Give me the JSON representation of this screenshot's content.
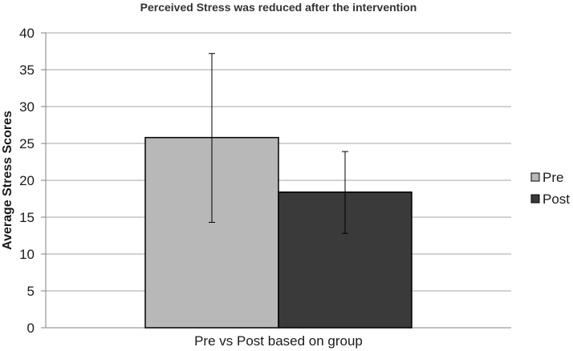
{
  "chart_data": {
    "type": "bar",
    "title": "Perceived Stress was reduced after the intervention",
    "xlabel": "Pre vs Post based on group",
    "ylabel": "Average Stress Scores",
    "ylim": [
      0,
      40
    ],
    "yticks": [
      0,
      5,
      10,
      15,
      20,
      25,
      30,
      35,
      40
    ],
    "grid": true,
    "legend_position": "right",
    "series": [
      {
        "name": "Pre",
        "value": 25.8,
        "error_low": 14.3,
        "error_high": 37.2,
        "color": "#b8b8b8"
      },
      {
        "name": "Post",
        "value": 18.4,
        "error_low": 12.8,
        "error_high": 23.9,
        "color": "#3a3a3a"
      }
    ]
  }
}
